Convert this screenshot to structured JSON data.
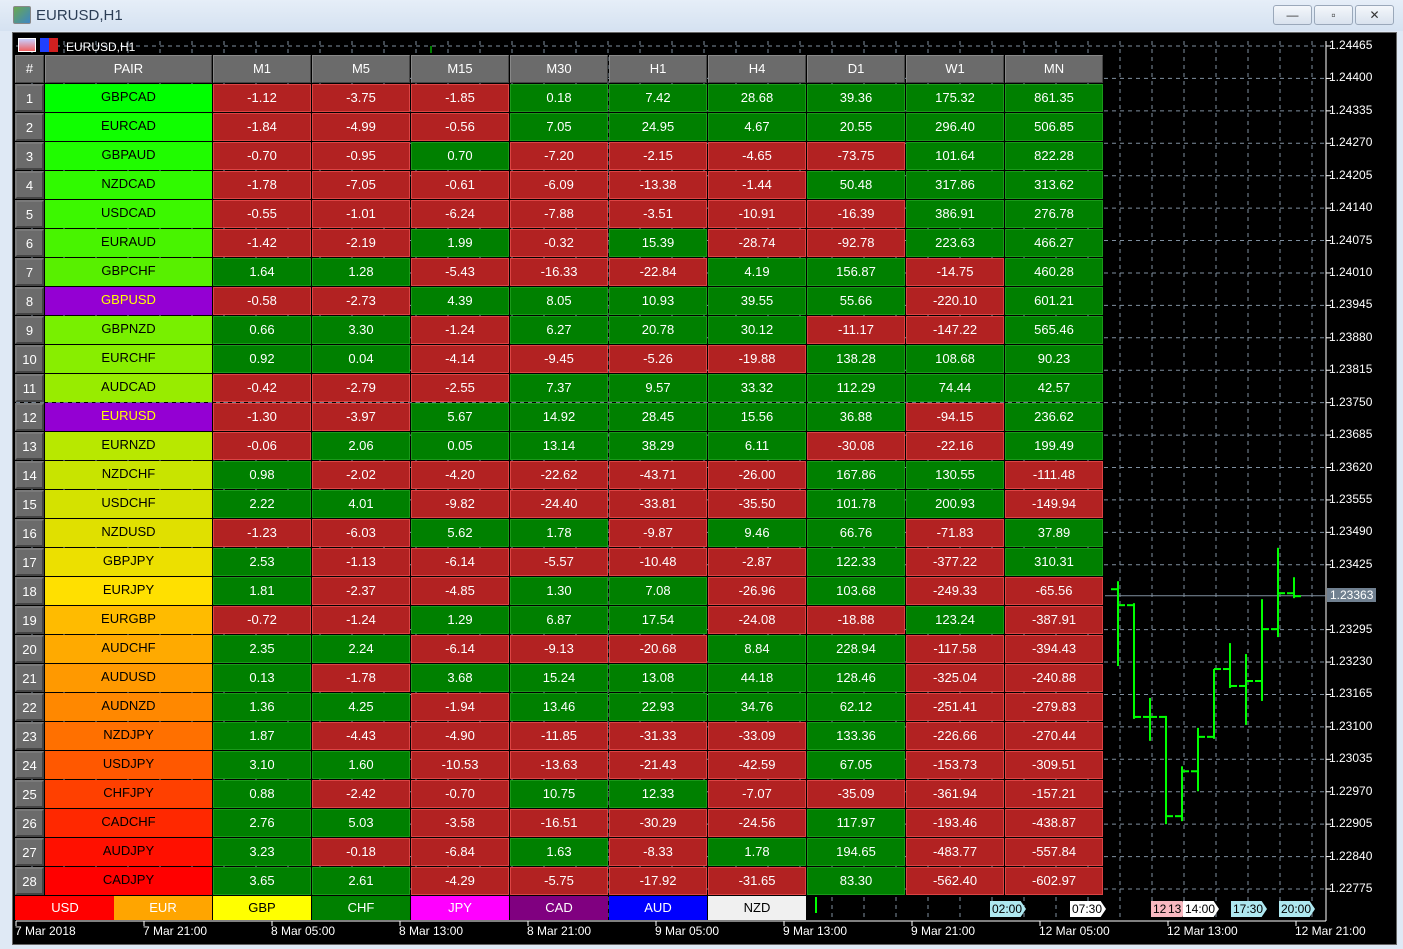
{
  "window": {
    "title": "EURUSD,H1",
    "minimize": "—",
    "maximize": "▫",
    "close": "✕"
  },
  "chart_title": "EURUSD,H1",
  "table": {
    "headers": [
      "#",
      "PAIR",
      "M1",
      "M5",
      "M15",
      "M30",
      "H1",
      "H4",
      "D1",
      "W1",
      "MN"
    ],
    "rows": [
      [
        "1",
        "GBPCAD",
        "-1.12",
        "-3.75",
        "-1.85",
        "0.18",
        "7.42",
        "28.68",
        "39.36",
        "175.32",
        "861.35"
      ],
      [
        "2",
        "EURCAD",
        "-1.84",
        "-4.99",
        "-0.56",
        "7.05",
        "24.95",
        "4.67",
        "20.55",
        "296.40",
        "506.85"
      ],
      [
        "3",
        "GBPAUD",
        "-0.70",
        "-0.95",
        "0.70",
        "-7.20",
        "-2.15",
        "-4.65",
        "-73.75",
        "101.64",
        "822.28"
      ],
      [
        "4",
        "NZDCAD",
        "-1.78",
        "-7.05",
        "-0.61",
        "-6.09",
        "-13.38",
        "-1.44",
        "50.48",
        "317.86",
        "313.62"
      ],
      [
        "5",
        "USDCAD",
        "-0.55",
        "-1.01",
        "-6.24",
        "-7.88",
        "-3.51",
        "-10.91",
        "-16.39",
        "386.91",
        "276.78"
      ],
      [
        "6",
        "EURAUD",
        "-1.42",
        "-2.19",
        "1.99",
        "-0.32",
        "15.39",
        "-28.74",
        "-92.78",
        "223.63",
        "466.27"
      ],
      [
        "7",
        "GBPCHF",
        "1.64",
        "1.28",
        "-5.43",
        "-16.33",
        "-22.84",
        "4.19",
        "156.87",
        "-14.75",
        "460.28"
      ],
      [
        "8",
        "GBPUSD",
        "-0.58",
        "-2.73",
        "4.39",
        "8.05",
        "10.93",
        "39.55",
        "55.66",
        "-220.10",
        "601.21"
      ],
      [
        "9",
        "GBPNZD",
        "0.66",
        "3.30",
        "-1.24",
        "6.27",
        "20.78",
        "30.12",
        "-11.17",
        "-147.22",
        "565.46"
      ],
      [
        "10",
        "EURCHF",
        "0.92",
        "0.04",
        "-4.14",
        "-9.45",
        "-5.26",
        "-19.88",
        "138.28",
        "108.68",
        "90.23"
      ],
      [
        "11",
        "AUDCAD",
        "-0.42",
        "-2.79",
        "-2.55",
        "7.37",
        "9.57",
        "33.32",
        "112.29",
        "74.44",
        "42.57"
      ],
      [
        "12",
        "EURUSD",
        "-1.30",
        "-3.97",
        "5.67",
        "14.92",
        "28.45",
        "15.56",
        "36.88",
        "-94.15",
        "236.62"
      ],
      [
        "13",
        "EURNZD",
        "-0.06",
        "2.06",
        "0.05",
        "13.14",
        "38.29",
        "6.11",
        "-30.08",
        "-22.16",
        "199.49"
      ],
      [
        "14",
        "NZDCHF",
        "0.98",
        "-2.02",
        "-4.20",
        "-22.62",
        "-43.71",
        "-26.00",
        "167.86",
        "130.55",
        "-111.48"
      ],
      [
        "15",
        "USDCHF",
        "2.22",
        "4.01",
        "-9.82",
        "-24.40",
        "-33.81",
        "-35.50",
        "101.78",
        "200.93",
        "-149.94"
      ],
      [
        "16",
        "NZDUSD",
        "-1.23",
        "-6.03",
        "5.62",
        "1.78",
        "-9.87",
        "9.46",
        "66.76",
        "-71.83",
        "37.89"
      ],
      [
        "17",
        "GBPJPY",
        "2.53",
        "-1.13",
        "-6.14",
        "-5.57",
        "-10.48",
        "-2.87",
        "122.33",
        "-377.22",
        "310.31"
      ],
      [
        "18",
        "EURJPY",
        "1.81",
        "-2.37",
        "-4.85",
        "1.30",
        "7.08",
        "-26.96",
        "103.68",
        "-249.33",
        "-65.56"
      ],
      [
        "19",
        "EURGBP",
        "-0.72",
        "-1.24",
        "1.29",
        "6.87",
        "17.54",
        "-24.08",
        "-18.88",
        "123.24",
        "-387.91"
      ],
      [
        "20",
        "AUDCHF",
        "2.35",
        "2.24",
        "-6.14",
        "-9.13",
        "-20.68",
        "8.84",
        "228.94",
        "-117.58",
        "-394.43"
      ],
      [
        "21",
        "AUDUSD",
        "0.13",
        "-1.78",
        "3.68",
        "15.24",
        "13.08",
        "44.18",
        "128.46",
        "-325.04",
        "-240.88"
      ],
      [
        "22",
        "AUDNZD",
        "1.36",
        "4.25",
        "-1.94",
        "13.46",
        "22.93",
        "34.76",
        "62.12",
        "-251.41",
        "-279.83"
      ],
      [
        "23",
        "NZDJPY",
        "1.87",
        "-4.43",
        "-4.90",
        "-11.85",
        "-31.33",
        "-33.09",
        "133.36",
        "-226.66",
        "-270.44"
      ],
      [
        "24",
        "USDJPY",
        "3.10",
        "1.60",
        "-10.53",
        "-13.63",
        "-21.43",
        "-42.59",
        "67.05",
        "-153.73",
        "-309.51"
      ],
      [
        "25",
        "CHFJPY",
        "0.88",
        "-2.42",
        "-0.70",
        "10.75",
        "12.33",
        "-7.07",
        "-35.09",
        "-361.94",
        "-157.21"
      ],
      [
        "26",
        "CADCHF",
        "2.76",
        "5.03",
        "-3.58",
        "-16.51",
        "-30.29",
        "-24.56",
        "117.97",
        "-193.46",
        "-438.87"
      ],
      [
        "27",
        "AUDJPY",
        "3.23",
        "-0.18",
        "-6.84",
        "1.63",
        "-8.33",
        "1.78",
        "194.65",
        "-483.77",
        "-557.84"
      ],
      [
        "28",
        "CADJPY",
        "3.65",
        "2.61",
        "-4.29",
        "-5.75",
        "-17.92",
        "-31.65",
        "83.30",
        "-562.40",
        "-602.97"
      ]
    ],
    "pair_colors": [
      "#00ff00",
      "#10ff00",
      "#20fc00",
      "#30fa00",
      "#3cf800",
      "#48f400",
      "#58f000",
      "#9400d3",
      "#78f000",
      "#88ee00",
      "#98ec00",
      "#9400d3",
      "#b8e800",
      "#c8e400",
      "#d4e200",
      "#e0e000",
      "#ece000",
      "#ffe000",
      "#ffbb00",
      "#ffaa00",
      "#ff9900",
      "#ff8800",
      "#ff7000",
      "#ff5800",
      "#ff4000",
      "#ff2800",
      "#ff1000",
      "#ff0000"
    ],
    "highlight_rows": [
      "8",
      "12"
    ],
    "negative_color": "#b22222",
    "positive_color": "#008000"
  },
  "legend": [
    {
      "label": "USD",
      "bg": "#ff0000",
      "fg": "#ffffff"
    },
    {
      "label": "EUR",
      "bg": "#ffa500",
      "fg": "#ffffff"
    },
    {
      "label": "GBP",
      "bg": "#ffff00",
      "fg": "#000000"
    },
    {
      "label": "CHF",
      "bg": "#008000",
      "fg": "#ffffff"
    },
    {
      "label": "JPY",
      "bg": "#ff00ff",
      "fg": "#ffffff"
    },
    {
      "label": "CAD",
      "bg": "#800080",
      "fg": "#ffffff"
    },
    {
      "label": "AUD",
      "bg": "#0000ff",
      "fg": "#ffffff"
    },
    {
      "label": "NZD",
      "bg": "#f0f0f0",
      "fg": "#000000"
    }
  ],
  "price_axis": [
    "1.24465",
    "1.24400",
    "1.24335",
    "1.24270",
    "1.24205",
    "1.24140",
    "1.24075",
    "1.24010",
    "1.23945",
    "1.23880",
    "1.23815",
    "1.23750",
    "1.23685",
    "1.23620",
    "1.23555",
    "1.23490",
    "1.23425",
    "1.23295",
    "1.23230",
    "1.23165",
    "1.23100",
    "1.23035",
    "1.22970",
    "1.22905",
    "1.22840",
    "1.22775"
  ],
  "current_price": "1.23363",
  "time_axis": [
    "7 Mar 2018",
    "7 Mar 21:00",
    "8 Mar 05:00",
    "8 Mar 13:00",
    "8 Mar 21:00",
    "9 Mar 05:00",
    "9 Mar 13:00",
    "9 Mar 21:00",
    "12 Mar 05:00",
    "12 Mar 13:00",
    "12 Mar 21:00"
  ],
  "event_tags": [
    {
      "label": "02:00",
      "color": "#aee8f0"
    },
    {
      "label": "07:30",
      "color": "#ffffff"
    },
    {
      "label": "12",
      "color": "#f8b8c0"
    },
    {
      "label": "13",
      "color": "#f8b8c0"
    },
    {
      "label": "14:00",
      "color": "#ffffff"
    },
    {
      "label": "17:30",
      "color": "#aee8f0"
    },
    {
      "label": "20:00",
      "color": "#aee8f0"
    }
  ],
  "bar_color": "#00ff00",
  "bars": [
    {
      "o": 1.23376,
      "h": 1.23392,
      "l": 1.23222,
      "c": 1.23344
    },
    {
      "o": 1.23344,
      "h": 1.23348,
      "l": 1.23116,
      "c": 1.2312
    },
    {
      "o": 1.2312,
      "h": 1.23158,
      "l": 1.23072,
      "c": 1.2312
    },
    {
      "o": 1.2312,
      "h": 1.23122,
      "l": 1.22905,
      "c": 1.22921
    },
    {
      "o": 1.22921,
      "h": 1.23021,
      "l": 1.22911,
      "c": 1.23011
    },
    {
      "o": 1.23011,
      "h": 1.23098,
      "l": 1.22971,
      "c": 1.2308
    },
    {
      "o": 1.2308,
      "h": 1.23216,
      "l": 1.23076,
      "c": 1.23216
    },
    {
      "o": 1.23216,
      "h": 1.23268,
      "l": 1.23178,
      "c": 1.23182
    },
    {
      "o": 1.23182,
      "h": 1.23246,
      "l": 1.23104,
      "c": 1.23192
    },
    {
      "o": 1.23192,
      "h": 1.23356,
      "l": 1.23152,
      "c": 1.23296
    },
    {
      "o": 1.23296,
      "h": 1.23459,
      "l": 1.2328,
      "c": 1.23368
    },
    {
      "o": 1.23368,
      "h": 1.234,
      "l": 1.23358,
      "c": 1.23362
    }
  ]
}
